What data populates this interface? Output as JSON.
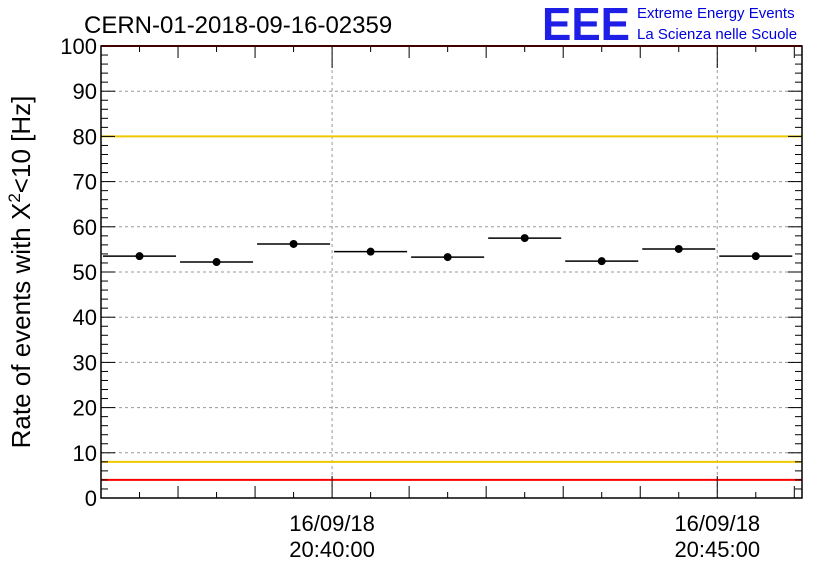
{
  "chart_data": {
    "type": "scatter",
    "title": "CERN-01-2018-09-16-02359",
    "ylabel_prefix": "Rate of events with X",
    "ylabel_superscript": "2",
    "ylabel_suffix": "<10 [Hz]",
    "xlabel": "",
    "ylim": [
      0,
      100
    ],
    "y_ticks": [
      0,
      10,
      20,
      30,
      40,
      50,
      60,
      70,
      80,
      90,
      100
    ],
    "x_range_minutes": [
      -3.0,
      6.1
    ],
    "x_tick_labels": [
      {
        "minute": 0,
        "date": "16/09/18",
        "time": "20:40:00"
      },
      {
        "minute": 5,
        "date": "16/09/18",
        "time": "20:45:00"
      }
    ],
    "bin_width_minutes": 1.0,
    "points": [
      {
        "minute": -2.5,
        "rate": 53.5
      },
      {
        "minute": -1.5,
        "rate": 52.2
      },
      {
        "minute": -0.5,
        "rate": 56.2
      },
      {
        "minute": 0.5,
        "rate": 54.5
      },
      {
        "minute": 1.5,
        "rate": 53.3
      },
      {
        "minute": 2.5,
        "rate": 57.5
      },
      {
        "minute": 3.5,
        "rate": 52.4
      },
      {
        "minute": 4.5,
        "rate": 55.1
      },
      {
        "minute": 5.5,
        "rate": 53.5
      }
    ],
    "reference_lines": [
      {
        "value": 100,
        "color": "#ff0000"
      },
      {
        "value": 80,
        "color": "#f0c800"
      },
      {
        "value": 8,
        "color": "#f0c800"
      },
      {
        "value": 4,
        "color": "#ff0000"
      }
    ],
    "grid": true
  },
  "logo": {
    "letters": "EEE",
    "line1": "Extreme Energy Events",
    "line2": "La Scienza nelle Scuole",
    "color": "#1e1ee6"
  }
}
